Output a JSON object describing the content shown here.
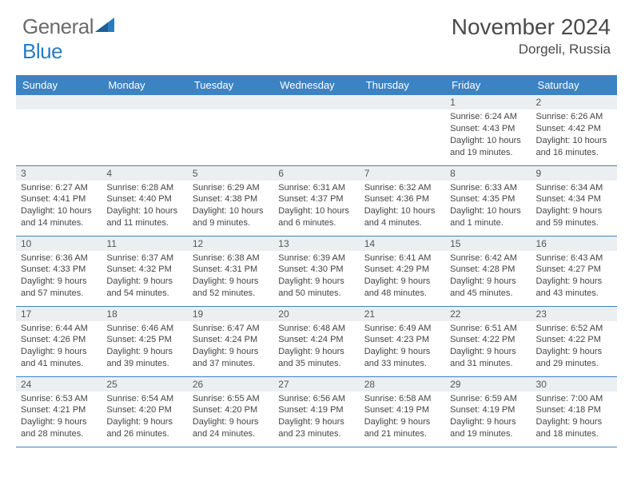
{
  "logo": {
    "text1": "General",
    "text2": "Blue"
  },
  "title": "November 2024",
  "location": "Dorgeli, Russia",
  "colors": {
    "header_bg": "#3c83c3",
    "header_text": "#ffffff",
    "daynum_bg": "#eceff1",
    "row_border": "#3c83c3",
    "body_text": "#444444",
    "logo_gray": "#6b6b6b",
    "logo_blue": "#2b7bc0"
  },
  "weekdays": [
    "Sunday",
    "Monday",
    "Tuesday",
    "Wednesday",
    "Thursday",
    "Friday",
    "Saturday"
  ],
  "weeks": [
    [
      null,
      null,
      null,
      null,
      null,
      {
        "d": "1",
        "sr": "Sunrise: 6:24 AM",
        "ss": "Sunset: 4:43 PM",
        "dl1": "Daylight: 10 hours",
        "dl2": "and 19 minutes."
      },
      {
        "d": "2",
        "sr": "Sunrise: 6:26 AM",
        "ss": "Sunset: 4:42 PM",
        "dl1": "Daylight: 10 hours",
        "dl2": "and 16 minutes."
      }
    ],
    [
      {
        "d": "3",
        "sr": "Sunrise: 6:27 AM",
        "ss": "Sunset: 4:41 PM",
        "dl1": "Daylight: 10 hours",
        "dl2": "and 14 minutes."
      },
      {
        "d": "4",
        "sr": "Sunrise: 6:28 AM",
        "ss": "Sunset: 4:40 PM",
        "dl1": "Daylight: 10 hours",
        "dl2": "and 11 minutes."
      },
      {
        "d": "5",
        "sr": "Sunrise: 6:29 AM",
        "ss": "Sunset: 4:38 PM",
        "dl1": "Daylight: 10 hours",
        "dl2": "and 9 minutes."
      },
      {
        "d": "6",
        "sr": "Sunrise: 6:31 AM",
        "ss": "Sunset: 4:37 PM",
        "dl1": "Daylight: 10 hours",
        "dl2": "and 6 minutes."
      },
      {
        "d": "7",
        "sr": "Sunrise: 6:32 AM",
        "ss": "Sunset: 4:36 PM",
        "dl1": "Daylight: 10 hours",
        "dl2": "and 4 minutes."
      },
      {
        "d": "8",
        "sr": "Sunrise: 6:33 AM",
        "ss": "Sunset: 4:35 PM",
        "dl1": "Daylight: 10 hours",
        "dl2": "and 1 minute."
      },
      {
        "d": "9",
        "sr": "Sunrise: 6:34 AM",
        "ss": "Sunset: 4:34 PM",
        "dl1": "Daylight: 9 hours",
        "dl2": "and 59 minutes."
      }
    ],
    [
      {
        "d": "10",
        "sr": "Sunrise: 6:36 AM",
        "ss": "Sunset: 4:33 PM",
        "dl1": "Daylight: 9 hours",
        "dl2": "and 57 minutes."
      },
      {
        "d": "11",
        "sr": "Sunrise: 6:37 AM",
        "ss": "Sunset: 4:32 PM",
        "dl1": "Daylight: 9 hours",
        "dl2": "and 54 minutes."
      },
      {
        "d": "12",
        "sr": "Sunrise: 6:38 AM",
        "ss": "Sunset: 4:31 PM",
        "dl1": "Daylight: 9 hours",
        "dl2": "and 52 minutes."
      },
      {
        "d": "13",
        "sr": "Sunrise: 6:39 AM",
        "ss": "Sunset: 4:30 PM",
        "dl1": "Daylight: 9 hours",
        "dl2": "and 50 minutes."
      },
      {
        "d": "14",
        "sr": "Sunrise: 6:41 AM",
        "ss": "Sunset: 4:29 PM",
        "dl1": "Daylight: 9 hours",
        "dl2": "and 48 minutes."
      },
      {
        "d": "15",
        "sr": "Sunrise: 6:42 AM",
        "ss": "Sunset: 4:28 PM",
        "dl1": "Daylight: 9 hours",
        "dl2": "and 45 minutes."
      },
      {
        "d": "16",
        "sr": "Sunrise: 6:43 AM",
        "ss": "Sunset: 4:27 PM",
        "dl1": "Daylight: 9 hours",
        "dl2": "and 43 minutes."
      }
    ],
    [
      {
        "d": "17",
        "sr": "Sunrise: 6:44 AM",
        "ss": "Sunset: 4:26 PM",
        "dl1": "Daylight: 9 hours",
        "dl2": "and 41 minutes."
      },
      {
        "d": "18",
        "sr": "Sunrise: 6:46 AM",
        "ss": "Sunset: 4:25 PM",
        "dl1": "Daylight: 9 hours",
        "dl2": "and 39 minutes."
      },
      {
        "d": "19",
        "sr": "Sunrise: 6:47 AM",
        "ss": "Sunset: 4:24 PM",
        "dl1": "Daylight: 9 hours",
        "dl2": "and 37 minutes."
      },
      {
        "d": "20",
        "sr": "Sunrise: 6:48 AM",
        "ss": "Sunset: 4:24 PM",
        "dl1": "Daylight: 9 hours",
        "dl2": "and 35 minutes."
      },
      {
        "d": "21",
        "sr": "Sunrise: 6:49 AM",
        "ss": "Sunset: 4:23 PM",
        "dl1": "Daylight: 9 hours",
        "dl2": "and 33 minutes."
      },
      {
        "d": "22",
        "sr": "Sunrise: 6:51 AM",
        "ss": "Sunset: 4:22 PM",
        "dl1": "Daylight: 9 hours",
        "dl2": "and 31 minutes."
      },
      {
        "d": "23",
        "sr": "Sunrise: 6:52 AM",
        "ss": "Sunset: 4:22 PM",
        "dl1": "Daylight: 9 hours",
        "dl2": "and 29 minutes."
      }
    ],
    [
      {
        "d": "24",
        "sr": "Sunrise: 6:53 AM",
        "ss": "Sunset: 4:21 PM",
        "dl1": "Daylight: 9 hours",
        "dl2": "and 28 minutes."
      },
      {
        "d": "25",
        "sr": "Sunrise: 6:54 AM",
        "ss": "Sunset: 4:20 PM",
        "dl1": "Daylight: 9 hours",
        "dl2": "and 26 minutes."
      },
      {
        "d": "26",
        "sr": "Sunrise: 6:55 AM",
        "ss": "Sunset: 4:20 PM",
        "dl1": "Daylight: 9 hours",
        "dl2": "and 24 minutes."
      },
      {
        "d": "27",
        "sr": "Sunrise: 6:56 AM",
        "ss": "Sunset: 4:19 PM",
        "dl1": "Daylight: 9 hours",
        "dl2": "and 23 minutes."
      },
      {
        "d": "28",
        "sr": "Sunrise: 6:58 AM",
        "ss": "Sunset: 4:19 PM",
        "dl1": "Daylight: 9 hours",
        "dl2": "and 21 minutes."
      },
      {
        "d": "29",
        "sr": "Sunrise: 6:59 AM",
        "ss": "Sunset: 4:19 PM",
        "dl1": "Daylight: 9 hours",
        "dl2": "and 19 minutes."
      },
      {
        "d": "30",
        "sr": "Sunrise: 7:00 AM",
        "ss": "Sunset: 4:18 PM",
        "dl1": "Daylight: 9 hours",
        "dl2": "and 18 minutes."
      }
    ]
  ]
}
